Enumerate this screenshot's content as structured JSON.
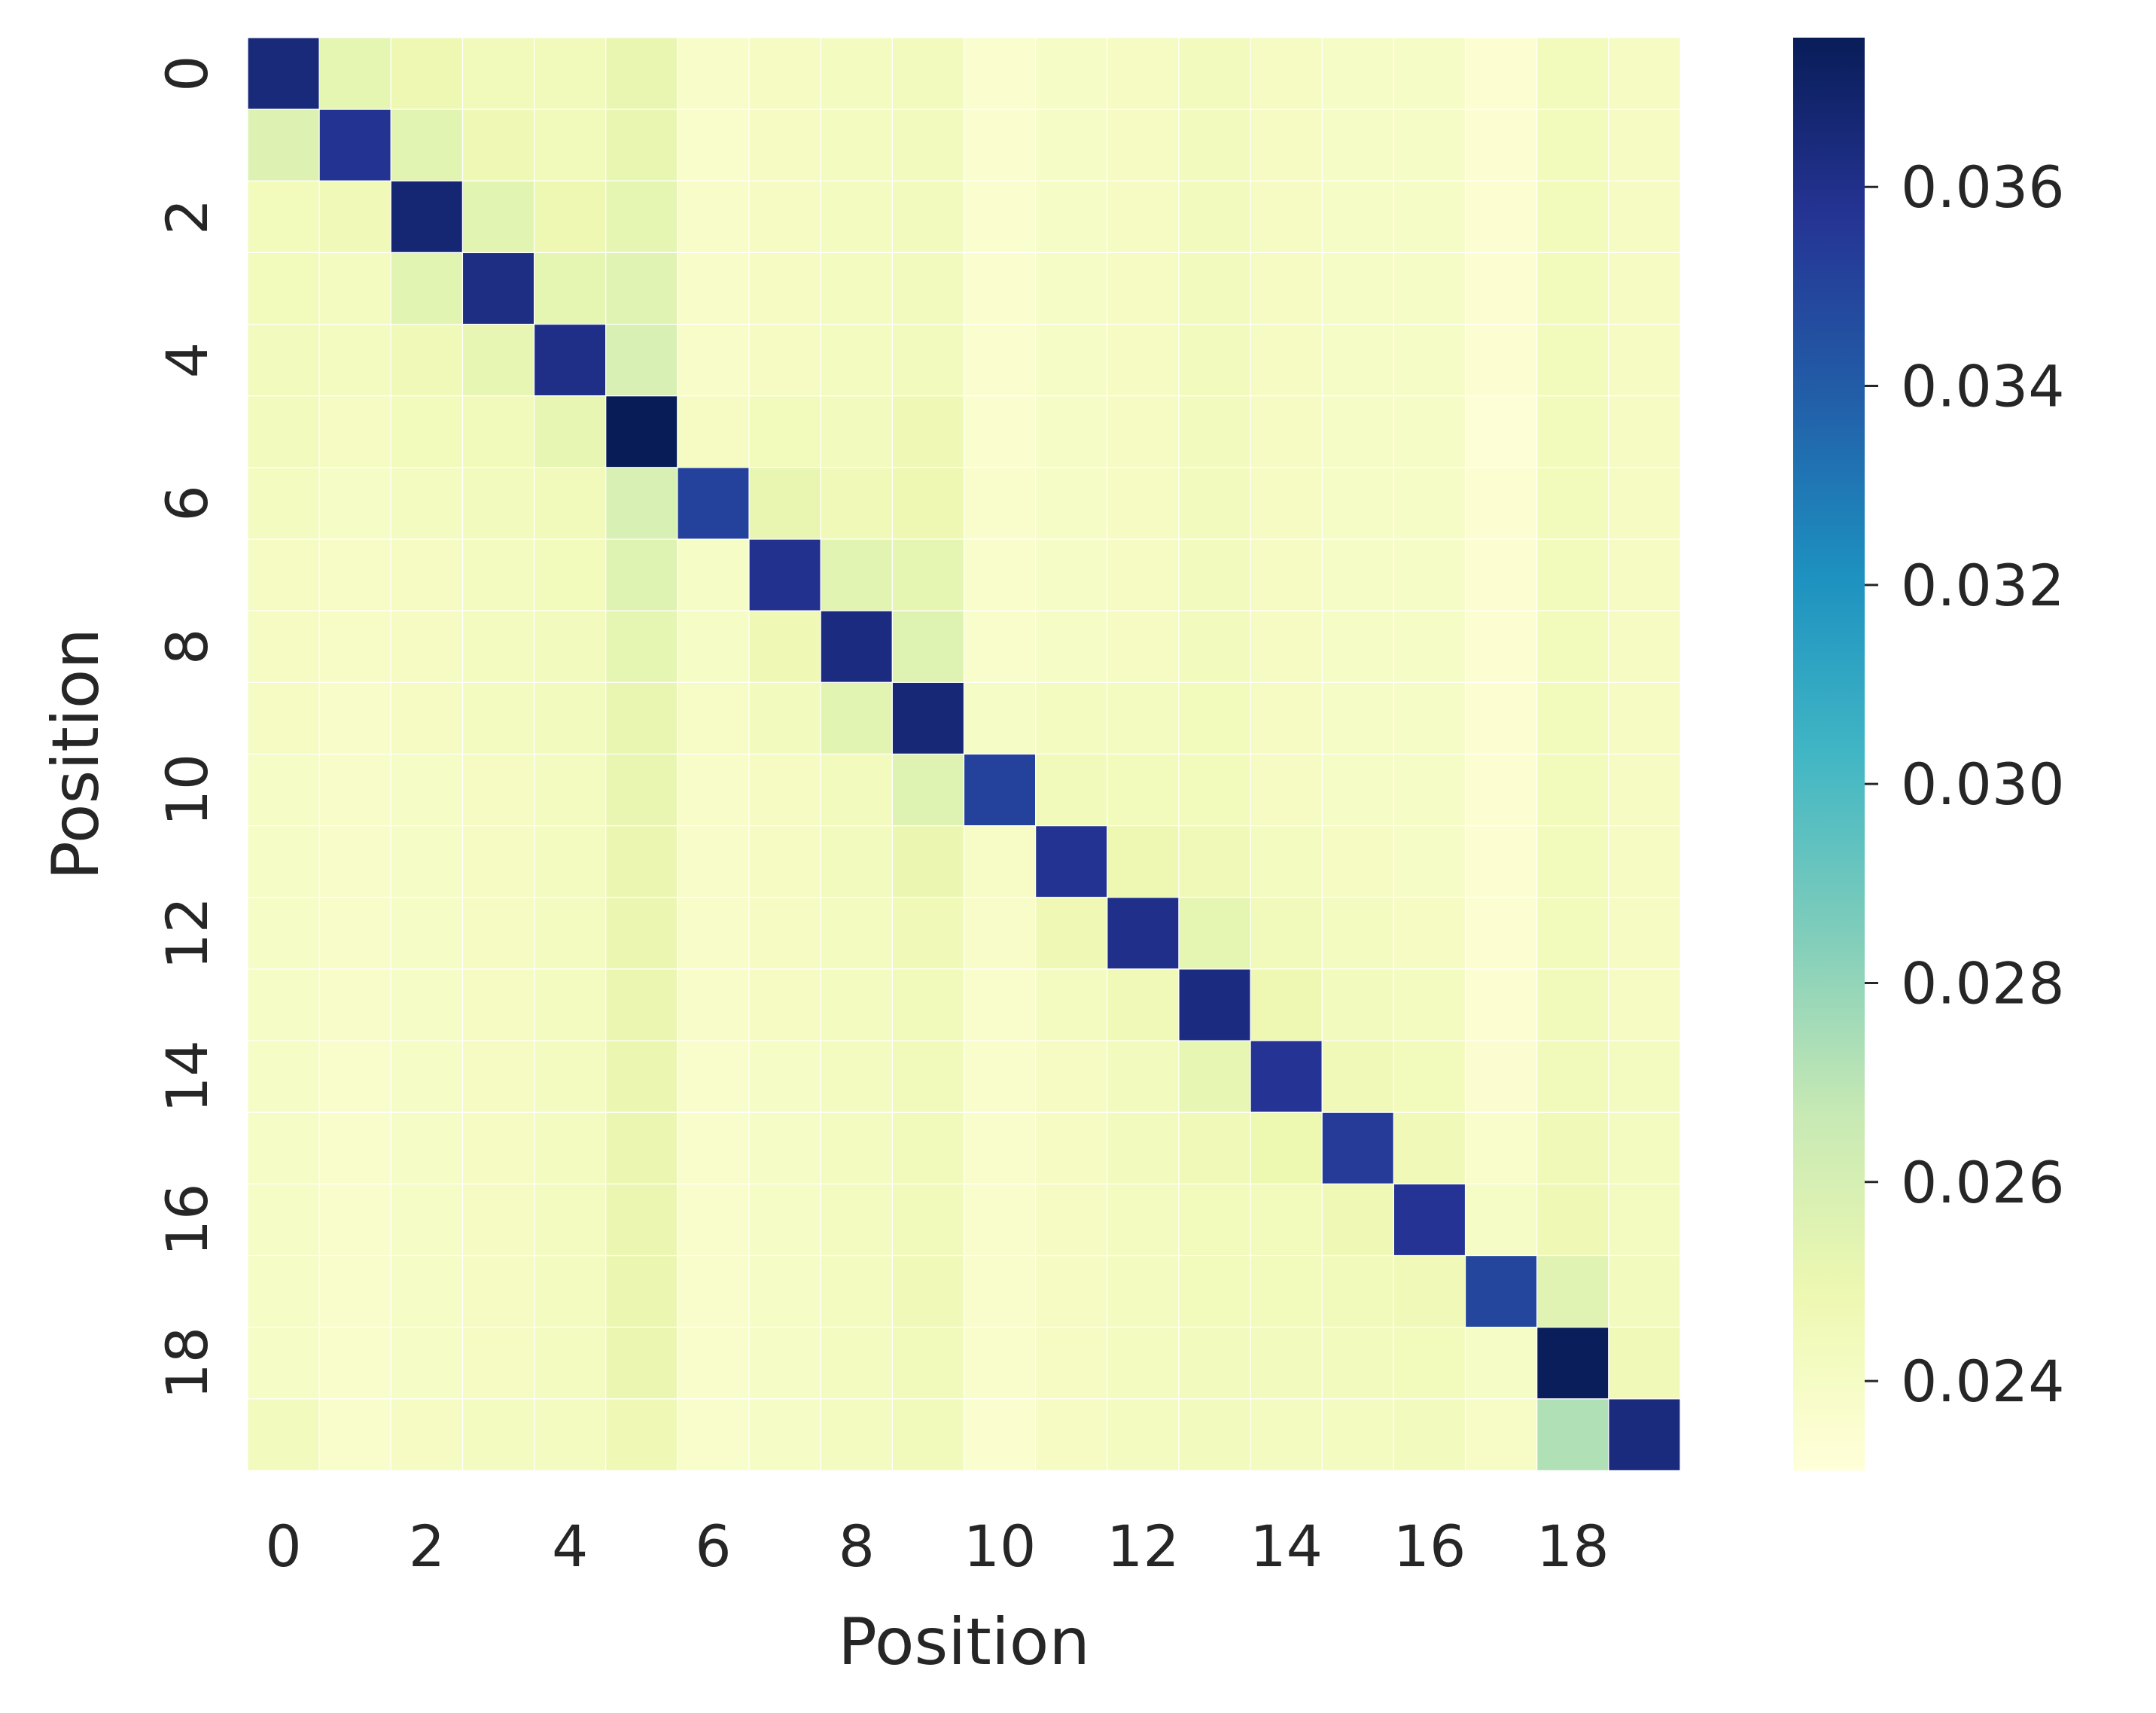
{
  "chart_data": {
    "type": "heatmap",
    "title": "",
    "xlabel": "Position",
    "ylabel": "Position",
    "x_tick_labels": [
      "0",
      "2",
      "4",
      "6",
      "8",
      "10",
      "12",
      "14",
      "16",
      "18"
    ],
    "y_tick_labels": [
      "0",
      "2",
      "4",
      "6",
      "8",
      "10",
      "12",
      "14",
      "16",
      "18"
    ],
    "x_categories": [
      0,
      1,
      2,
      3,
      4,
      5,
      6,
      7,
      8,
      9,
      10,
      11,
      12,
      13,
      14,
      15,
      16,
      17,
      18,
      19
    ],
    "y_categories": [
      0,
      1,
      2,
      3,
      4,
      5,
      6,
      7,
      8,
      9,
      10,
      11,
      12,
      13,
      14,
      15,
      16,
      17,
      18,
      19
    ],
    "colormap": "YlGnBu",
    "colormap_stops": [
      "#ffffd9",
      "#edf8b1",
      "#c7e9b4",
      "#7fcdbb",
      "#41b6c4",
      "#1d91c0",
      "#225ea8",
      "#253494",
      "#081d58"
    ],
    "colorbar": {
      "range": [
        0.0231,
        0.0375
      ],
      "tick_labels": [
        "0.024",
        "0.026",
        "0.028",
        "0.030",
        "0.032",
        "0.034",
        "0.036"
      ],
      "tick_values": [
        0.024,
        0.026,
        0.028,
        0.03,
        0.032,
        0.034,
        0.036
      ]
    },
    "grid_line_color": "#ffffff",
    "values": [
      [
        0.0365,
        0.0253,
        0.0248,
        0.0245,
        0.0245,
        0.0251,
        0.0238,
        0.0241,
        0.0242,
        0.0243,
        0.0236,
        0.024,
        0.0241,
        0.0243,
        0.0241,
        0.024,
        0.024,
        0.0234,
        0.0244,
        0.0241
      ],
      [
        0.0257,
        0.0358,
        0.0254,
        0.0247,
        0.0245,
        0.0251,
        0.0237,
        0.0241,
        0.0242,
        0.0243,
        0.0236,
        0.024,
        0.0241,
        0.0243,
        0.0241,
        0.024,
        0.024,
        0.0234,
        0.0244,
        0.0241
      ],
      [
        0.0244,
        0.0246,
        0.0367,
        0.0254,
        0.0248,
        0.0253,
        0.0238,
        0.0241,
        0.0242,
        0.0243,
        0.0236,
        0.024,
        0.0241,
        0.0243,
        0.0241,
        0.024,
        0.024,
        0.0234,
        0.0244,
        0.0241
      ],
      [
        0.0244,
        0.0242,
        0.0254,
        0.0362,
        0.0253,
        0.0255,
        0.0238,
        0.0241,
        0.0242,
        0.0243,
        0.0236,
        0.024,
        0.0241,
        0.0243,
        0.0241,
        0.024,
        0.024,
        0.0234,
        0.0244,
        0.0241
      ],
      [
        0.0243,
        0.0242,
        0.0246,
        0.0252,
        0.0361,
        0.0259,
        0.0238,
        0.0241,
        0.0242,
        0.0243,
        0.0236,
        0.024,
        0.0241,
        0.0243,
        0.0241,
        0.024,
        0.024,
        0.0234,
        0.0244,
        0.0241
      ],
      [
        0.0243,
        0.0241,
        0.0244,
        0.0245,
        0.0252,
        0.0375,
        0.0241,
        0.0244,
        0.0243,
        0.0247,
        0.0236,
        0.024,
        0.0241,
        0.0243,
        0.0241,
        0.024,
        0.024,
        0.0233,
        0.0244,
        0.0241
      ],
      [
        0.0242,
        0.024,
        0.0242,
        0.0243,
        0.0245,
        0.0259,
        0.0351,
        0.0251,
        0.0246,
        0.0248,
        0.0237,
        0.024,
        0.0241,
        0.0243,
        0.0241,
        0.024,
        0.024,
        0.0234,
        0.0244,
        0.0241
      ],
      [
        0.0241,
        0.0239,
        0.0241,
        0.0242,
        0.0244,
        0.0256,
        0.024,
        0.0359,
        0.0254,
        0.0253,
        0.0237,
        0.024,
        0.0241,
        0.0243,
        0.0241,
        0.024,
        0.024,
        0.0234,
        0.0244,
        0.0241
      ],
      [
        0.0241,
        0.0239,
        0.0241,
        0.0242,
        0.0243,
        0.0253,
        0.024,
        0.0247,
        0.0363,
        0.0256,
        0.0237,
        0.024,
        0.0241,
        0.0243,
        0.0241,
        0.024,
        0.024,
        0.0234,
        0.0244,
        0.0241
      ],
      [
        0.0241,
        0.0238,
        0.0241,
        0.0242,
        0.0243,
        0.0251,
        0.0239,
        0.0243,
        0.0254,
        0.0366,
        0.024,
        0.0242,
        0.0242,
        0.0244,
        0.0241,
        0.024,
        0.024,
        0.0234,
        0.0244,
        0.0241
      ],
      [
        0.024,
        0.0238,
        0.024,
        0.0241,
        0.0242,
        0.0251,
        0.0238,
        0.0241,
        0.0243,
        0.0256,
        0.0351,
        0.0245,
        0.0244,
        0.0244,
        0.0241,
        0.024,
        0.024,
        0.0234,
        0.0244,
        0.0241
      ],
      [
        0.024,
        0.0238,
        0.024,
        0.0241,
        0.0242,
        0.025,
        0.0238,
        0.0241,
        0.0243,
        0.025,
        0.0239,
        0.0358,
        0.0248,
        0.0246,
        0.0242,
        0.0241,
        0.024,
        0.0234,
        0.0244,
        0.0241
      ],
      [
        0.024,
        0.0238,
        0.024,
        0.0241,
        0.0242,
        0.025,
        0.0238,
        0.0241,
        0.0242,
        0.0246,
        0.0238,
        0.0247,
        0.036,
        0.0253,
        0.0245,
        0.0242,
        0.0241,
        0.0234,
        0.0244,
        0.0241
      ],
      [
        0.024,
        0.0238,
        0.024,
        0.0241,
        0.0242,
        0.025,
        0.0238,
        0.0241,
        0.0242,
        0.0245,
        0.0237,
        0.0242,
        0.0246,
        0.0363,
        0.0248,
        0.0243,
        0.0242,
        0.0234,
        0.0245,
        0.0241
      ],
      [
        0.024,
        0.0237,
        0.024,
        0.0241,
        0.0242,
        0.025,
        0.0237,
        0.024,
        0.0242,
        0.0245,
        0.0237,
        0.0241,
        0.0243,
        0.0252,
        0.0357,
        0.0246,
        0.0244,
        0.0235,
        0.0245,
        0.0242
      ],
      [
        0.024,
        0.0237,
        0.024,
        0.0241,
        0.0242,
        0.025,
        0.0237,
        0.024,
        0.0242,
        0.0245,
        0.0237,
        0.0241,
        0.0243,
        0.0246,
        0.0249,
        0.0354,
        0.0246,
        0.0237,
        0.0246,
        0.0242
      ],
      [
        0.024,
        0.0237,
        0.024,
        0.0241,
        0.0242,
        0.025,
        0.0237,
        0.024,
        0.0242,
        0.0245,
        0.0237,
        0.0241,
        0.0242,
        0.0244,
        0.0244,
        0.0247,
        0.0357,
        0.024,
        0.0247,
        0.0242
      ],
      [
        0.024,
        0.0237,
        0.024,
        0.0241,
        0.0242,
        0.025,
        0.0237,
        0.024,
        0.0242,
        0.0246,
        0.0237,
        0.0241,
        0.0242,
        0.0244,
        0.0244,
        0.0245,
        0.0246,
        0.0349,
        0.0255,
        0.0243
      ],
      [
        0.024,
        0.0237,
        0.024,
        0.0241,
        0.0242,
        0.025,
        0.0237,
        0.024,
        0.0242,
        0.0245,
        0.0237,
        0.0241,
        0.0242,
        0.0243,
        0.0243,
        0.0243,
        0.0244,
        0.024,
        0.0374,
        0.0246
      ],
      [
        0.0243,
        0.0237,
        0.0241,
        0.0242,
        0.0242,
        0.0247,
        0.0237,
        0.024,
        0.0242,
        0.0245,
        0.0236,
        0.0241,
        0.0242,
        0.0243,
        0.0242,
        0.0242,
        0.0243,
        0.0239,
        0.0273,
        0.0364
      ]
    ]
  }
}
